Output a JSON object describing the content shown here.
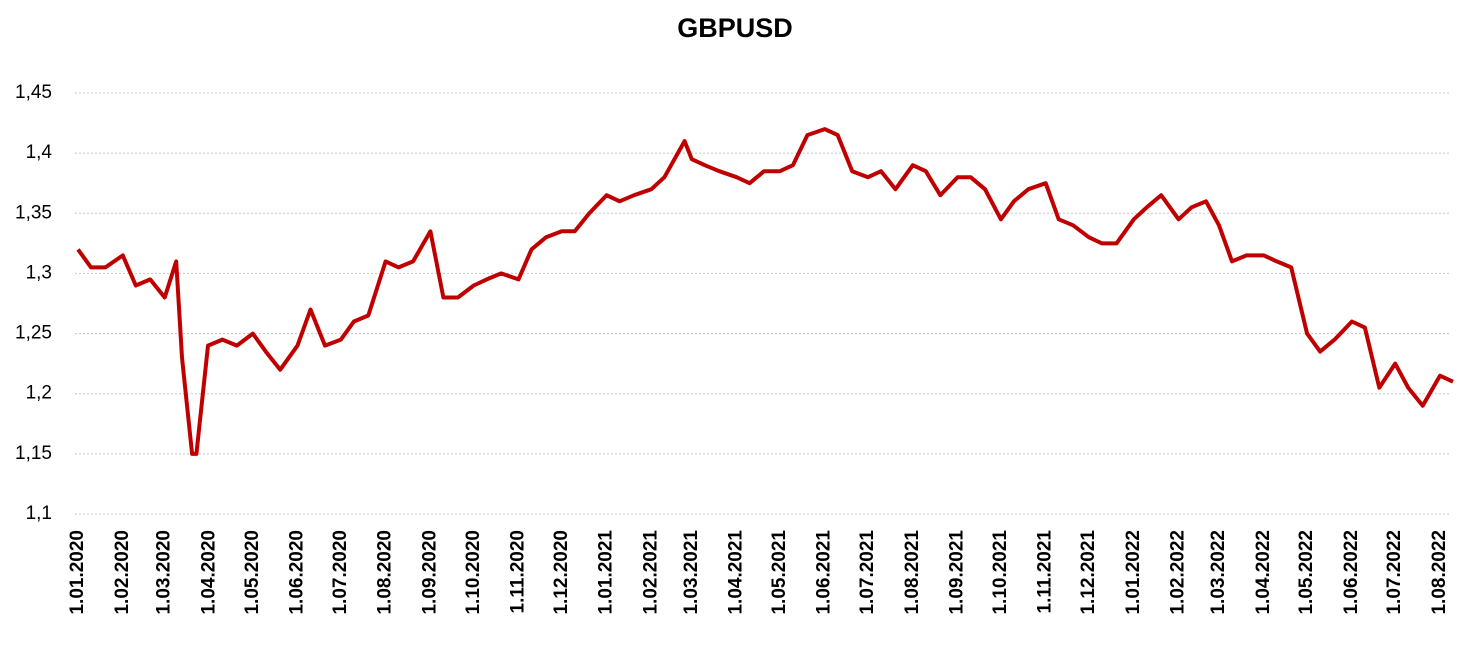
{
  "chart_data": {
    "type": "line",
    "title": "GBPUSD",
    "x": [
      "1.01.2020",
      "10.01.2020",
      "20.01.2020",
      "1.02.2020",
      "10.02.2020",
      "20.02.2020",
      "1.03.2020",
      "9.03.2020",
      "13.03.2020",
      "20.03.2020",
      "23.03.2020",
      "31.03.2020",
      "10.04.2020",
      "20.04.2020",
      "1.05.2020",
      "10.05.2020",
      "20.05.2020",
      "1.06.2020",
      "10.06.2020",
      "20.06.2020",
      "1.07.2020",
      "10.07.2020",
      "20.07.2020",
      "1.08.2020",
      "10.08.2020",
      "20.08.2020",
      "1.09.2020",
      "10.09.2020",
      "20.09.2020",
      "1.10.2020",
      "10.10.2020",
      "20.10.2020",
      "1.11.2020",
      "10.11.2020",
      "20.11.2020",
      "1.12.2020",
      "10.12.2020",
      "20.12.2020",
      "1.01.2021",
      "10.01.2021",
      "20.01.2021",
      "1.02.2021",
      "10.02.2021",
      "24.02.2021",
      "1.03.2021",
      "10.03.2021",
      "20.03.2021",
      "1.04.2021",
      "10.04.2021",
      "20.04.2021",
      "1.05.2021",
      "10.05.2021",
      "20.05.2021",
      "1.06.2021",
      "10.06.2021",
      "20.06.2021",
      "1.07.2021",
      "10.07.2021",
      "20.07.2021",
      "1.08.2021",
      "10.08.2021",
      "20.08.2021",
      "1.09.2021",
      "10.09.2021",
      "20.09.2021",
      "1.10.2021",
      "10.10.2021",
      "20.10.2021",
      "1.11.2021",
      "10.11.2021",
      "20.11.2021",
      "1.12.2021",
      "10.12.2021",
      "20.12.2021",
      "1.01.2022",
      "10.01.2022",
      "20.01.2022",
      "1.02.2022",
      "10.02.2022",
      "20.02.2022",
      "1.03.2022",
      "10.03.2022",
      "20.03.2022",
      "1.04.2022",
      "10.04.2022",
      "20.04.2022",
      "1.05.2022",
      "10.05.2022",
      "20.05.2022",
      "1.06.2022",
      "10.06.2022",
      "20.06.2022",
      "1.07.2022",
      "10.07.2022",
      "20.07.2022",
      "1.08.2022",
      "10.08.2022"
    ],
    "series": [
      {
        "name": "GBPUSD",
        "color": "#c00000",
        "values": [
          1.32,
          1.305,
          1.305,
          1.315,
          1.29,
          1.295,
          1.28,
          1.31,
          1.23,
          1.15,
          1.15,
          1.24,
          1.245,
          1.24,
          1.25,
          1.235,
          1.22,
          1.24,
          1.27,
          1.24,
          1.245,
          1.26,
          1.265,
          1.31,
          1.305,
          1.31,
          1.335,
          1.28,
          1.28,
          1.29,
          1.295,
          1.3,
          1.295,
          1.32,
          1.33,
          1.335,
          1.335,
          1.35,
          1.365,
          1.36,
          1.365,
          1.37,
          1.38,
          1.41,
          1.395,
          1.39,
          1.385,
          1.38,
          1.375,
          1.385,
          1.385,
          1.39,
          1.415,
          1.42,
          1.415,
          1.385,
          1.38,
          1.385,
          1.37,
          1.39,
          1.385,
          1.365,
          1.38,
          1.38,
          1.37,
          1.345,
          1.36,
          1.37,
          1.375,
          1.345,
          1.34,
          1.33,
          1.325,
          1.325,
          1.345,
          1.355,
          1.365,
          1.345,
          1.355,
          1.36,
          1.34,
          1.31,
          1.315,
          1.315,
          1.31,
          1.305,
          1.25,
          1.235,
          1.245,
          1.26,
          1.255,
          1.205,
          1.225,
          1.205,
          1.19,
          1.215,
          1.21
        ]
      }
    ],
    "xticks": [
      "1.01.2020",
      "1.02.2020",
      "1.03.2020",
      "1.04.2020",
      "1.05.2020",
      "1.06.2020",
      "1.07.2020",
      "1.08.2020",
      "1.09.2020",
      "1.10.2020",
      "1.11.2020",
      "1.12.2020",
      "1.01.2021",
      "1.02.2021",
      "1.03.2021",
      "1.04.2021",
      "1.05.2021",
      "1.06.2021",
      "1.07.2021",
      "1.08.2021",
      "1.09.2021",
      "1.10.2021",
      "1.11.2021",
      "1.12.2021",
      "1.01.2022",
      "1.02.2022",
      "1.03.2022",
      "1.04.2022",
      "1.05.2022",
      "1.06.2022",
      "1.07.2022",
      "1.08.2022"
    ],
    "ylim": [
      1.1,
      1.45
    ],
    "yticks": [
      {
        "value": 1.1,
        "label": "1,1"
      },
      {
        "value": 1.15,
        "label": "1,15"
      },
      {
        "value": 1.2,
        "label": "1,2"
      },
      {
        "value": 1.25,
        "label": "1,25"
      },
      {
        "value": 1.3,
        "label": "1,3"
      },
      {
        "value": 1.35,
        "label": "1,35"
      },
      {
        "value": 1.4,
        "label": "1,4"
      },
      {
        "value": 1.45,
        "label": "1,45"
      }
    ],
    "grid": true
  }
}
